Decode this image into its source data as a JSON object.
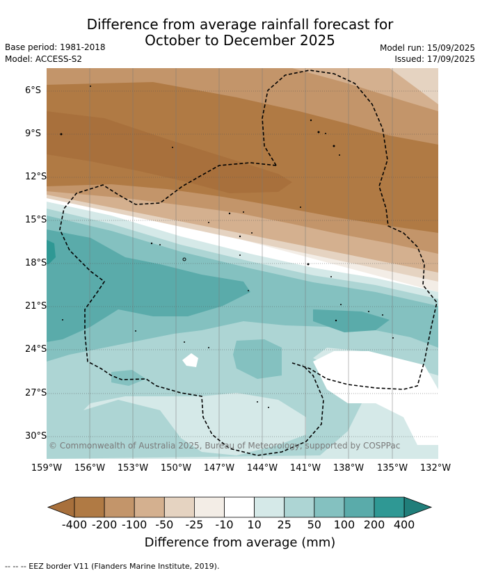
{
  "title_line1": "Difference from average rainfall forecast for",
  "title_line2": "October to December 2025",
  "base_period": "Base period: 1981-2018",
  "model": "Model: ACCESS-S2",
  "model_run": "Model run: 15/09/2025",
  "issued": "Issued: 17/09/2025",
  "copyright": "© Commonwealth of Australia 2025, Bureau of Meteorology, supported by COSPPac",
  "lat_labels": [
    "6°S",
    "9°S",
    "12°S",
    "15°S",
    "18°S",
    "21°S",
    "24°S",
    "27°S",
    "30°S"
  ],
  "lon_labels": [
    "159°W",
    "156°W",
    "153°W",
    "150°W",
    "147°W",
    "144°W",
    "141°W",
    "138°W",
    "135°W",
    "132°W"
  ],
  "colorbar": {
    "labels": [
      "-400",
      "-200",
      "-100",
      "-50",
      "-25",
      "-10",
      "10",
      "25",
      "50",
      "100",
      "200",
      "400"
    ],
    "colors": [
      "#a8703c",
      "#b07a44",
      "#c3956a",
      "#d4b08f",
      "#e5d3c1",
      "#f3ede6",
      "#ffffff",
      "#d5e9e8",
      "#add5d4",
      "#84c1c0",
      "#5aabaa",
      "#2f9894",
      "#207e7a"
    ],
    "title": "Difference from average (mm)"
  },
  "footer": "-- -- -- EEZ border V11 (Flanders Marine Institute, 2019)."
}
